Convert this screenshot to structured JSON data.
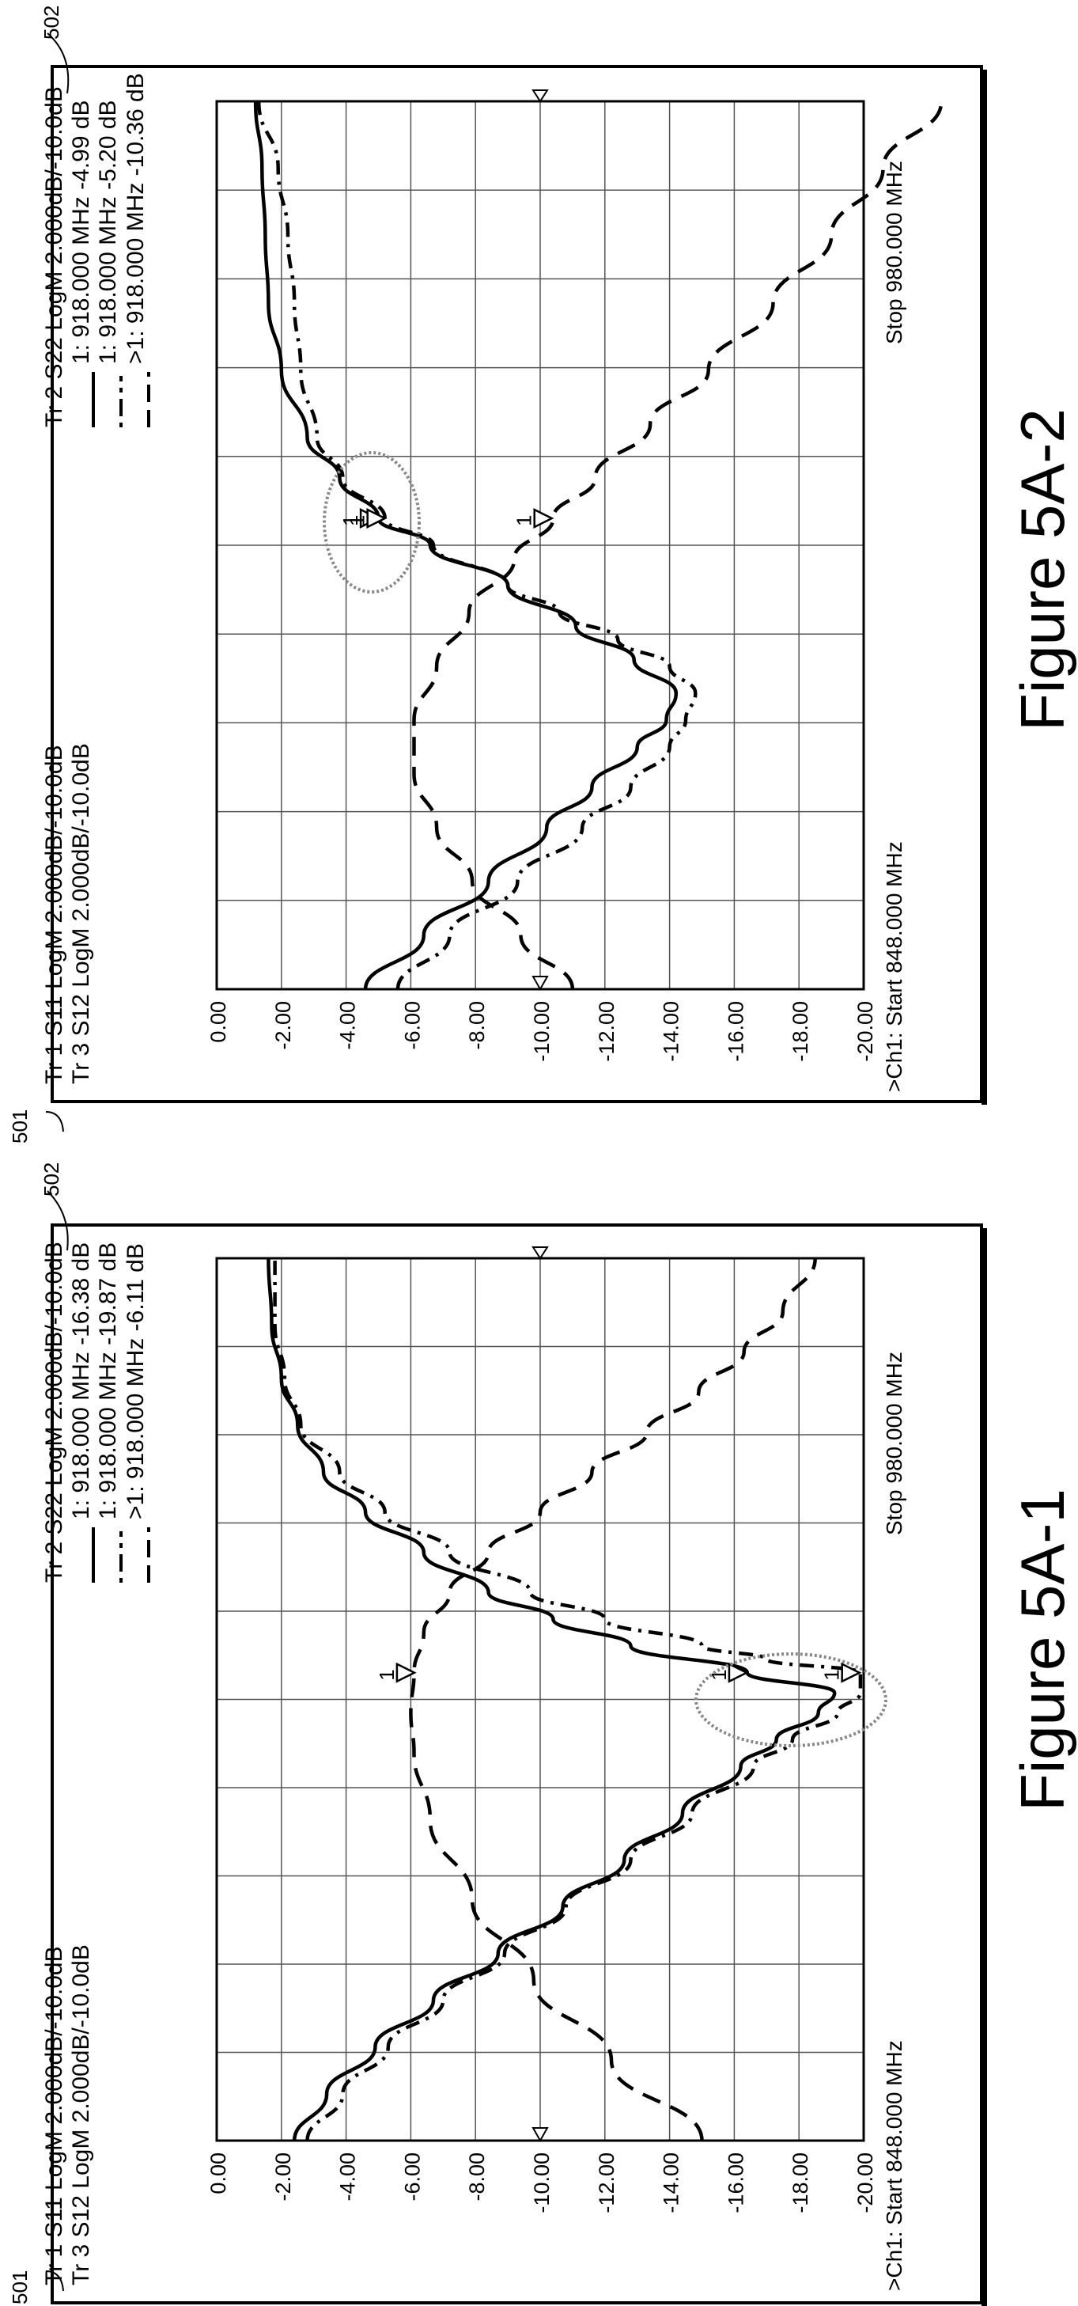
{
  "figures": [
    {
      "caption": "Figure 5A-1",
      "ref_left": "501",
      "ref_right": "502",
      "header": {
        "tr1": "Tr 1 S11 LogM 2.000dB/-10.0dB",
        "tr2": "Tr 2 S22 LogM 2.000dB/-10.0dB",
        "tr3": "Tr 3 S12 LogM 2.000dB/-10.0dB"
      },
      "marker_readouts": [
        "1: 918.000 MHz -16.38 dB",
        "1: 918.000 MHz -19.87 dB",
        ">1: 918.000 MHz -6.11 dB"
      ],
      "start_label": ">Ch1: Start 848.000 MHz",
      "stop_label": "Stop 980.000 MHz"
    },
    {
      "caption": "Figure 5A-2",
      "ref_left": "501",
      "ref_right": "502",
      "header": {
        "tr1": "Tr 1 S11 LogM 2.000dB/-10.0dB",
        "tr2": "Tr 2 S22 LogM 2.000dB/-10.0dB",
        "tr3": "Tr 3 S12 LogM 2.000dB/-10.0dB"
      },
      "marker_readouts": [
        "1: 918.000 MHz -4.99 dB",
        "1: 918.000 MHz -5.20 dB",
        ">1: 918.000 MHz -10.36 dB"
      ],
      "start_label": ">Ch1: Start 848.000 MHz",
      "stop_label": "Stop 980.000 MHz"
    }
  ],
  "chart_data": [
    {
      "type": "line",
      "title": "",
      "xlabel": "",
      "ylabel": "",
      "xlim": [
        848,
        980
      ],
      "ylim": [
        -20,
        0
      ],
      "y_ticks": [
        "0.00",
        "-2.00",
        "-4.00",
        "-6.00",
        "-8.00",
        "-10.00",
        "-12.00",
        "-14.00",
        "-16.00",
        "-18.00",
        "-20.00"
      ],
      "reference_level": -10,
      "grid": true,
      "marker_label": "1",
      "series": [
        {
          "name": "S11",
          "style": "solid",
          "x": [
            848,
            855,
            862,
            869,
            876,
            883,
            890,
            897,
            904,
            908,
            912,
            915,
            918,
            922,
            926,
            930,
            936,
            942,
            948,
            955,
            962,
            970,
            980
          ],
          "y": [
            -2.4,
            -3.4,
            -4.9,
            -6.7,
            -8.7,
            -10.7,
            -12.6,
            -14.4,
            -16.2,
            -17.3,
            -18.6,
            -19.1,
            -16.4,
            -12.8,
            -10.4,
            -8.4,
            -6.4,
            -4.6,
            -3.3,
            -2.5,
            -2.0,
            -1.7,
            -1.6
          ]
        },
        {
          "name": "S22",
          "style": "dash-dot",
          "x": [
            848,
            855,
            862,
            869,
            876,
            883,
            890,
            897,
            904,
            908,
            912,
            915,
            918,
            920,
            922,
            926,
            930,
            936,
            942,
            948,
            955,
            962,
            970,
            980
          ],
          "y": [
            -2.8,
            -3.9,
            -5.3,
            -7.0,
            -8.9,
            -10.8,
            -12.8,
            -14.7,
            -16.6,
            -17.8,
            -19.2,
            -19.9,
            -19.9,
            -17.0,
            -15.0,
            -12.0,
            -9.7,
            -7.2,
            -5.2,
            -3.8,
            -2.6,
            -2.1,
            -1.8,
            -1.8
          ]
        },
        {
          "name": "S12",
          "style": "dashed",
          "x": [
            848,
            860,
            872,
            884,
            896,
            906,
            912,
            918,
            924,
            930,
            936,
            942,
            948,
            954,
            960,
            966,
            972,
            980
          ],
          "y": [
            -15.0,
            -12.2,
            -9.8,
            -7.9,
            -6.6,
            -6.1,
            -6.0,
            -6.1,
            -6.4,
            -7.2,
            -8.4,
            -10.0,
            -11.6,
            -13.3,
            -14.9,
            -16.3,
            -17.5,
            -18.5
          ]
        }
      ],
      "markers": [
        {
          "series": "S11",
          "x": 918,
          "y": -16.38
        },
        {
          "series": "S22",
          "x": 918,
          "y": -19.87
        },
        {
          "series": "S12",
          "x": 918,
          "y": -6.11
        }
      ]
    },
    {
      "type": "line",
      "title": "",
      "xlabel": "",
      "ylabel": "",
      "xlim": [
        848,
        980
      ],
      "ylim": [
        -20,
        0
      ],
      "y_ticks": [
        "0.00",
        "-2.00",
        "-4.00",
        "-6.00",
        "-8.00",
        "-10.00",
        "-12.00",
        "-14.00",
        "-16.00",
        "-18.00",
        "-20.00"
      ],
      "reference_level": -10,
      "grid": true,
      "marker_label": "1",
      "series": [
        {
          "name": "S11",
          "style": "solid",
          "x": [
            848,
            856,
            864,
            872,
            878,
            884,
            888,
            892,
            897,
            902,
            908,
            914,
            918,
            924,
            930,
            940,
            950,
            960,
            970,
            980
          ],
          "y": [
            -4.6,
            -6.4,
            -8.4,
            -10.2,
            -11.6,
            -13.0,
            -13.9,
            -14.2,
            -12.9,
            -11.1,
            -9.0,
            -6.6,
            -5.0,
            -3.8,
            -2.8,
            -2.0,
            -1.6,
            -1.5,
            -1.4,
            -1.2
          ]
        },
        {
          "name": "S22",
          "style": "dash-dot",
          "x": [
            848,
            856,
            864,
            872,
            878,
            884,
            888,
            892,
            896,
            900,
            904,
            908,
            914,
            918,
            924,
            930,
            940,
            950,
            960,
            970,
            980
          ],
          "y": [
            -5.6,
            -7.2,
            -9.3,
            -11.3,
            -12.8,
            -14.0,
            -14.5,
            -14.8,
            -14.0,
            -12.4,
            -10.6,
            -9.0,
            -6.7,
            -5.2,
            -3.9,
            -3.1,
            -2.6,
            -2.4,
            -2.2,
            -1.9,
            -1.3
          ]
        },
        {
          "name": "S12",
          "style": "dashed",
          "x": [
            848,
            856,
            864,
            872,
            880,
            888,
            896,
            904,
            912,
            918,
            924,
            932,
            940,
            950,
            960,
            970,
            980
          ],
          "y": [
            -11.0,
            -9.4,
            -7.9,
            -6.8,
            -6.1,
            -6.1,
            -6.8,
            -7.8,
            -9.2,
            -10.4,
            -11.7,
            -13.4,
            -15.2,
            -17.2,
            -19.0,
            -20.6,
            -22.4
          ]
        }
      ],
      "markers": [
        {
          "series": "S11",
          "x": 918,
          "y": -4.99
        },
        {
          "series": "S22",
          "x": 918,
          "y": -5.2
        },
        {
          "series": "S12",
          "x": 918,
          "y": -10.36
        }
      ]
    }
  ]
}
